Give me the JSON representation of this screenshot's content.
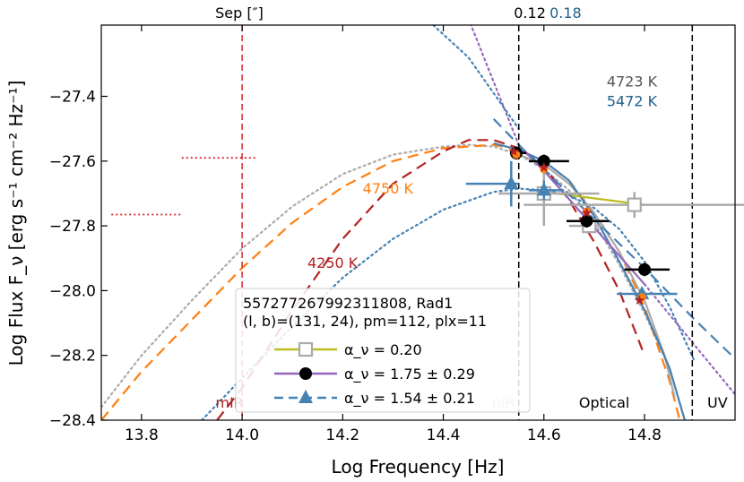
{
  "chart_data": {
    "type": "scatter",
    "xlabel": "Log Frequency [Hz]",
    "ylabel": "Log Flux F_ν [erg s⁻¹ cm⁻² Hz⁻¹]",
    "xlim": [
      13.72,
      14.98
    ],
    "ylim": [
      -28.4,
      -27.18
    ],
    "xticks": [
      13.8,
      14.0,
      14.2,
      14.4,
      14.6,
      14.8
    ],
    "xtick_labels": [
      "13.8",
      "14.0",
      "14.2",
      "14.4",
      "14.6",
      "14.8"
    ],
    "yticks": [
      -27.4,
      -27.6,
      -27.8,
      -28.0,
      -28.2,
      -28.4
    ],
    "ytick_labels": [
      "−27.4",
      "−27.6",
      "−27.8",
      "−28.0",
      "−28.2",
      "−28.4"
    ],
    "top_axis": {
      "sep_label": "Sep [″]",
      "labels": [
        {
          "text": "0.12",
          "x": 14.572,
          "color": "#000000"
        },
        {
          "text": "0.18",
          "x": 14.643,
          "color": "#1f5f8b"
        }
      ]
    },
    "vlines": [
      {
        "x": 14.0,
        "color": "#d62728",
        "style": "dashed"
      },
      {
        "x": 14.55,
        "color": "#000000",
        "style": "dashed"
      },
      {
        "x": 14.895,
        "color": "#000000",
        "style": "dashed"
      }
    ],
    "region_labels": [
      {
        "text": "mIR",
        "x": 13.975,
        "color": "#b22222"
      },
      {
        "text": "nIR",
        "x": 14.52,
        "color": "#bbbbbb"
      },
      {
        "text": "Optical",
        "x": 14.72,
        "color": "#000000"
      },
      {
        "text": "UV",
        "x": 14.945,
        "color": "#000000"
      }
    ],
    "upper_limits": [
      {
        "x": [
          13.88,
          14.03
        ],
        "y": -27.59,
        "color": "#d62728"
      },
      {
        "x": [
          13.74,
          13.88
        ],
        "y": -27.765,
        "color": "#d62728"
      }
    ],
    "temperature_labels": [
      {
        "text": "4750 K",
        "x": 14.29,
        "y": -27.7,
        "color": "#ff7f0e"
      },
      {
        "text": "4250 K",
        "x": 14.18,
        "y": -27.93,
        "color": "#b22222"
      },
      {
        "text": "4723 K",
        "x": 14.775,
        "y": -27.37,
        "color": "#555555"
      },
      {
        "text": "5472 K",
        "x": 14.775,
        "y": -27.43,
        "color": "#1f5f8b"
      }
    ],
    "legend": {
      "title_line1": "557277267992311808, Rad1",
      "title_line2": "(l, b)=(131, 24), pm=112, plx=11",
      "entries": [
        {
          "label": "α_ν =  0.20",
          "color": "#bcbd22",
          "marker": "open-square",
          "marker_color": "#aaaaaa"
        },
        {
          "label": "α_ν =  1.75 ± 0.29",
          "color": "#9467bd",
          "marker": "circle",
          "marker_color": "#000000"
        },
        {
          "label": "α_ν =  1.54 ± 0.21",
          "color": "#4682b4",
          "marker": "triangle",
          "marker_color": "#4682b4",
          "dashed": true
        }
      ]
    },
    "series": [
      {
        "name": "gray photometry",
        "color": "#aaaaaa",
        "marker": "open-square",
        "points": [
          {
            "x": 14.6,
            "y": -27.7,
            "xerr": [
              0.09,
              0.11
            ],
            "yerr": 0.1
          },
          {
            "x": 14.78,
            "y": -27.735,
            "xerr": [
              0.22,
              0.25
            ],
            "yerr": 0.04
          },
          {
            "x": 14.69,
            "y": -27.8,
            "xerr": [
              0.04,
              0.03
            ],
            "yerr": 0.02
          }
        ]
      },
      {
        "name": "black photometry",
        "color": "#000000",
        "marker": "circle",
        "points": [
          {
            "x": 14.545,
            "y": -27.575,
            "xerr": [
              0.01,
              0.02
            ],
            "yerr": 0.02
          },
          {
            "x": 14.6,
            "y": -27.6,
            "xerr": [
              0.03,
              0.05
            ],
            "yerr": 0.02
          },
          {
            "x": 14.685,
            "y": -27.785,
            "xerr": [
              0.04,
              0.045
            ],
            "yerr": 0.02
          },
          {
            "x": 14.8,
            "y": -27.935,
            "xerr": [
              0.04,
              0.05
            ],
            "yerr": 0.02
          }
        ]
      },
      {
        "name": "blue photometry",
        "color": "#4682b4",
        "marker": "triangle",
        "points": [
          {
            "x": 14.535,
            "y": -27.67,
            "xerr": [
              0.09,
              0.015
            ],
            "yerr": 0.07
          },
          {
            "x": 14.6,
            "y": -27.69,
            "xerr": [
              0.03,
              0.04
            ],
            "yerr": 0.03
          },
          {
            "x": 14.795,
            "y": -28.01,
            "xerr": [
              0.05,
              0.07
            ],
            "yerr": 0.01
          }
        ]
      },
      {
        "name": "orange points",
        "color": "#ff7f0e",
        "marker": "small-circle",
        "points": [
          {
            "x": 14.545,
            "y": -27.58
          },
          {
            "x": 14.6,
            "y": -27.625
          },
          {
            "x": 14.685,
            "y": -27.755
          },
          {
            "x": 14.795,
            "y": -28.02
          }
        ]
      },
      {
        "name": "brown stars",
        "color": "#b22222",
        "marker": "star",
        "points": [
          {
            "x": 14.54,
            "y": -27.57
          },
          {
            "x": 14.6,
            "y": -27.62
          },
          {
            "x": 14.685,
            "y": -27.76
          },
          {
            "x": 14.79,
            "y": -28.03
          }
        ]
      }
    ],
    "curves": [
      {
        "name": "gray dotted blackbody 4723 K",
        "color": "#aaaaaa",
        "style": "dotted",
        "x": [
          13.72,
          13.8,
          13.9,
          14.0,
          14.1,
          14.2,
          14.3,
          14.4,
          14.45,
          14.5,
          14.55,
          14.6,
          14.65,
          14.7,
          14.75,
          14.8,
          14.85,
          14.88
        ],
        "y": [
          -28.36,
          -28.2,
          -28.03,
          -27.87,
          -27.74,
          -27.64,
          -27.58,
          -27.555,
          -27.55,
          -27.555,
          -27.58,
          -27.625,
          -27.69,
          -27.79,
          -27.92,
          -28.07,
          -28.24,
          -28.4
        ]
      },
      {
        "name": "blue dotted blackbody 5472 K",
        "color": "#4682b4",
        "style": "dotted",
        "x": [
          13.92,
          14.0,
          14.1,
          14.2,
          14.3,
          14.4,
          14.5,
          14.55,
          14.6,
          14.65,
          14.7,
          14.75,
          14.8,
          14.85,
          14.9
        ],
        "y": [
          -28.4,
          -28.27,
          -28.11,
          -27.96,
          -27.84,
          -27.75,
          -27.695,
          -27.685,
          -27.69,
          -27.705,
          -27.745,
          -27.81,
          -27.91,
          -28.05,
          -28.22
        ]
      },
      {
        "name": "orange dashed model 4750 K",
        "color": "#ff7f0e",
        "style": "dashed",
        "x": [
          13.72,
          13.8,
          13.9,
          14.0,
          14.1,
          14.2,
          14.3,
          14.4,
          14.5,
          14.55,
          14.6,
          14.65,
          14.7,
          14.75,
          14.8,
          14.85,
          14.87
        ],
        "y": [
          -28.4,
          -28.25,
          -28.09,
          -27.93,
          -27.79,
          -27.68,
          -27.6,
          -27.56,
          -27.55,
          -27.565,
          -27.6,
          -27.66,
          -27.76,
          -27.88,
          -28.05,
          -28.28,
          -28.4
        ]
      },
      {
        "name": "brown dashed model 4250 K",
        "color": "#b22222",
        "style": "dashed",
        "x": [
          13.95,
          14.0,
          14.1,
          14.2,
          14.3,
          14.4,
          14.45,
          14.5,
          14.55,
          14.6,
          14.65,
          14.7,
          14.75,
          14.8
        ],
        "y": [
          -28.4,
          -28.3,
          -28.06,
          -27.84,
          -27.67,
          -27.57,
          -27.535,
          -27.535,
          -27.56,
          -27.615,
          -27.72,
          -27.85,
          -28.0,
          -28.2
        ]
      },
      {
        "name": "gray solid model",
        "color": "#aaaaaa",
        "style": "solid",
        "x": [
          14.55,
          14.6,
          14.65,
          14.7,
          14.75,
          14.8,
          14.84,
          14.86
        ],
        "y": [
          -27.58,
          -27.61,
          -27.67,
          -27.76,
          -27.88,
          -28.03,
          -28.2,
          -28.33
        ]
      },
      {
        "name": "blue solid model",
        "color": "#4682b4",
        "style": "solid",
        "x": [
          14.5,
          14.55,
          14.6,
          14.65,
          14.7,
          14.75,
          14.8,
          14.85,
          14.88
        ],
        "y": [
          -27.545,
          -27.565,
          -27.6,
          -27.66,
          -27.77,
          -27.91,
          -28.06,
          -28.24,
          -28.4
        ]
      },
      {
        "name": "yellow-green power law α=0.20",
        "color": "#bcbd22",
        "style": "solid",
        "x": [
          14.6,
          14.7,
          14.8
        ],
        "y": [
          -27.695,
          -27.715,
          -27.735
        ]
      },
      {
        "name": "purple power law α=1.75",
        "color": "#9467bd",
        "style": "solid",
        "x": [
          14.55,
          14.6,
          14.7,
          14.8
        ],
        "y": [
          -27.55,
          -27.63,
          -27.805,
          -27.98
        ]
      },
      {
        "name": "purple dotted extension",
        "color": "#9467bd",
        "style": "dotted",
        "x": [
          14.45,
          14.55
        ],
        "y": [
          -27.16,
          -27.55
        ],
        "x2": [
          14.8,
          14.98
        ],
        "y2": [
          -27.98,
          -28.32
        ]
      },
      {
        "name": "blue dashed power law α=1.54",
        "color": "#4682b4",
        "style": "dashed",
        "x": [
          14.5,
          14.55,
          14.6,
          14.7,
          14.8,
          14.9,
          14.98
        ],
        "y": [
          -27.47,
          -27.55,
          -27.625,
          -27.78,
          -27.93,
          -28.09,
          -28.21
        ]
      },
      {
        "name": "blue dotted steep extension",
        "color": "#4682b4",
        "style": "dotted",
        "x": [
          14.38,
          14.45,
          14.55
        ],
        "y": [
          -27.18,
          -27.28,
          -27.5
        ]
      }
    ]
  }
}
